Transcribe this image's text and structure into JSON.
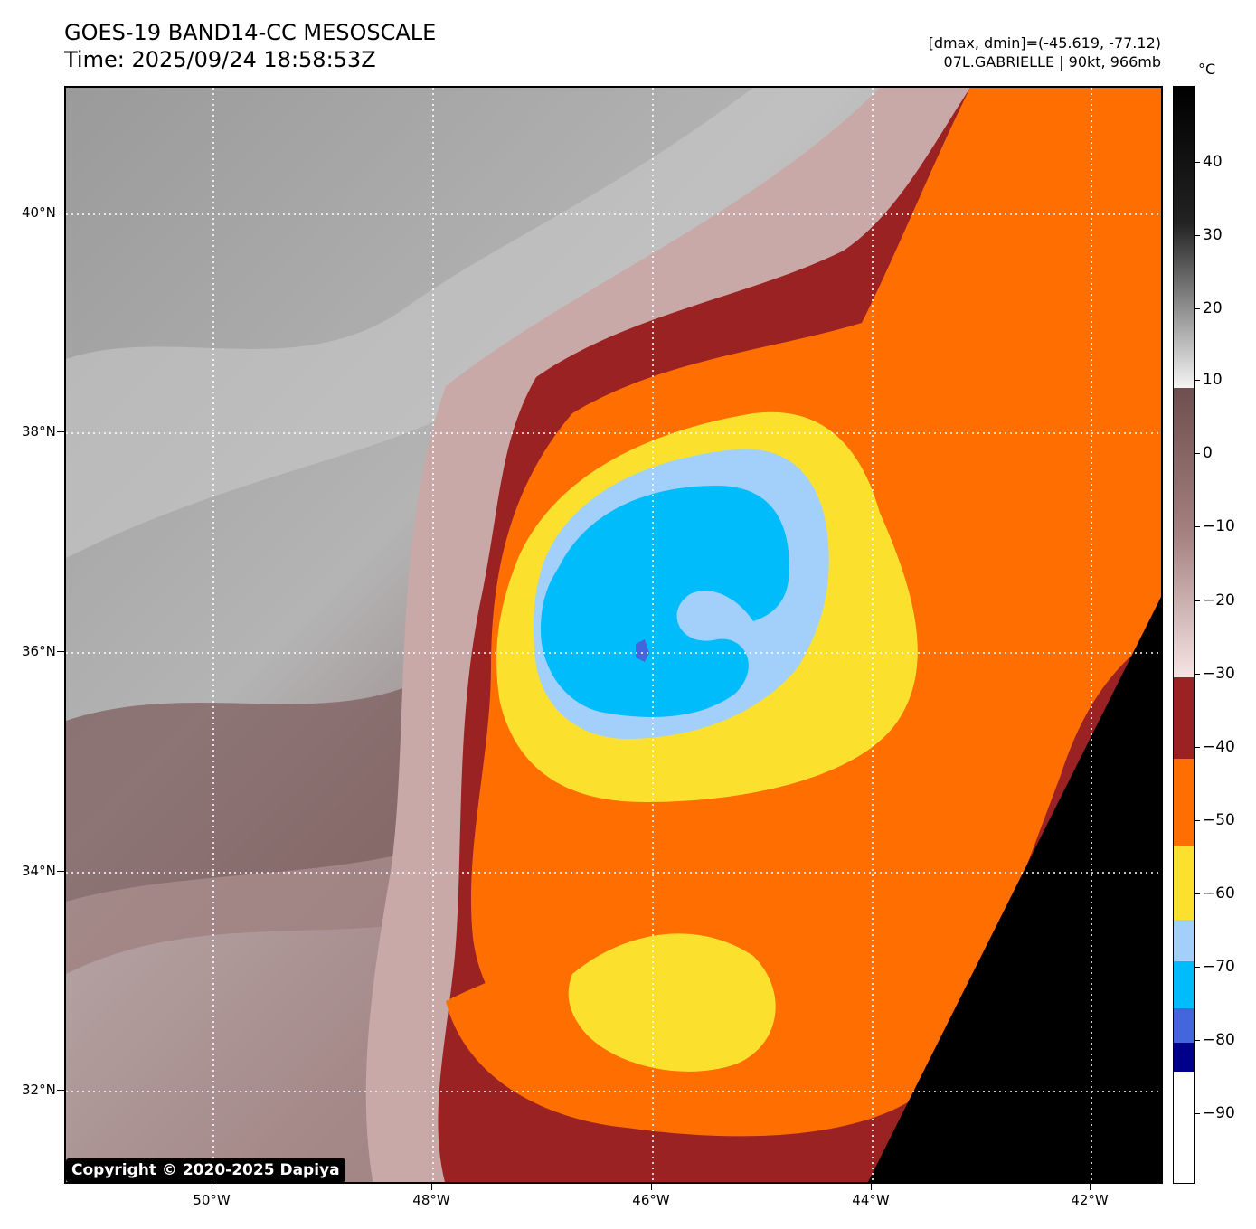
{
  "header": {
    "title_line1": "GOES-19 BAND14-CC MESOSCALE",
    "title_line2": "Time: 2025/09/24 18:58:53Z",
    "info_line1": "[dmax, dmin]=(-45.619, -77.12)",
    "info_line2": "07L.GABRIELLE | 90kt, 966mb"
  },
  "map": {
    "lat_labels": [
      "40°N",
      "38°N",
      "36°N",
      "34°N",
      "32°N"
    ],
    "lon_labels": [
      "50°W",
      "48°W",
      "46°W",
      "44°W",
      "42°W"
    ],
    "copyright": "Copyright © 2020-2025 Dapiya"
  },
  "colorbar": {
    "unit": "°C",
    "labels": [
      "40",
      "30",
      "20",
      "10",
      "0",
      "−10",
      "−20",
      "−30",
      "−40",
      "−50",
      "−60",
      "−70",
      "−80",
      "−90"
    ],
    "colors": {
      "black": "#000000",
      "gray_light": "#f0f0f0",
      "brown_gray": "#7a5a5a",
      "pink_light": "#f4dcdc",
      "dark_red": "#9b2222",
      "orange": "#ff6e00",
      "yellow": "#fbe12e",
      "light_blue": "#a2d0fb",
      "cyan_blue": "#00bcfb",
      "royal_blue": "#4466dd",
      "navy": "#00008b",
      "white": "#ffffff"
    }
  }
}
